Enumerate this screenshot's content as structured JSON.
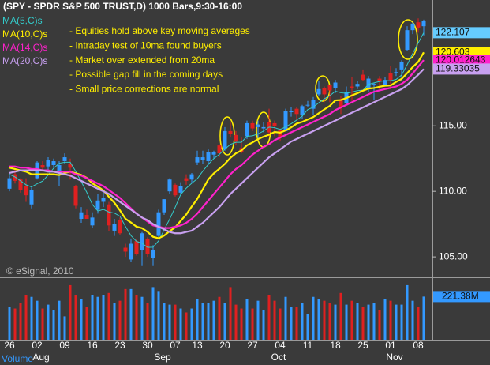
{
  "chart_data": {
    "type": "candlestick",
    "title": "(SPY - SPDR S&P 500 TRUST,D) 1000 Bars,9:30-16:00",
    "annotations": [
      "- Equities hold above key moving averages",
      "- Intraday test of 10ma found buyers",
      "- Market over extended from 20ma",
      "- Possible gap fill in the coming days",
      "- Small price corrections are normal"
    ],
    "watermark": "© eSignal, 2010",
    "categories": [
      "26",
      null,
      null,
      null,
      null,
      "02",
      null,
      null,
      null,
      null,
      "09",
      null,
      null,
      null,
      null,
      "16",
      null,
      null,
      null,
      null,
      "23",
      null,
      null,
      null,
      null,
      "30",
      null,
      null,
      null,
      null,
      "07",
      null,
      null,
      null,
      "13",
      null,
      null,
      null,
      null,
      "20",
      null,
      null,
      null,
      null,
      "27",
      null,
      null,
      null,
      null,
      "04",
      null,
      null,
      null,
      null,
      "11",
      null,
      null,
      null,
      null,
      "18",
      null,
      null,
      null,
      null,
      "25",
      null,
      null,
      null,
      null,
      "01",
      null,
      null,
      null,
      null,
      "08",
      null
    ],
    "month_labels": [
      null,
      null,
      null,
      null,
      null,
      "Aug",
      null,
      null,
      null,
      null,
      null,
      null,
      null,
      null,
      null,
      null,
      null,
      null,
      null,
      null,
      null,
      null,
      null,
      null,
      null,
      null,
      null,
      "Sep",
      null,
      null,
      null,
      null,
      null,
      null,
      null,
      null,
      null,
      null,
      null,
      null,
      null,
      null,
      null,
      null,
      null,
      null,
      null,
      null,
      "Oct",
      null,
      null,
      null,
      null,
      null,
      null,
      null,
      null,
      null,
      null,
      null,
      null,
      null,
      null,
      null,
      null,
      null,
      null,
      null,
      null,
      "Nov",
      null,
      null,
      null,
      null,
      null,
      null
    ],
    "open": [
      110.2,
      111.3,
      110.9,
      110.4,
      109.0,
      111.0,
      112.0,
      111.9,
      112.0,
      111.4,
      112.3,
      112.1,
      110.4,
      107.9,
      108.2,
      107.4,
      108.6,
      109.2,
      109.0,
      107.0,
      107.8,
      105.7,
      104.8,
      106.2,
      105.5,
      106.4,
      104.9,
      106.6,
      108.4,
      110.0,
      110.5,
      109.9,
      111.0,
      110.9,
      112.2,
      112.4,
      112.3,
      112.8,
      113.5,
      113.2,
      114.6,
      114.3,
      113.3,
      114.2,
      115.2,
      114.9,
      114.8,
      115.3,
      115.2,
      114.7,
      114.6,
      116.1,
      116.3,
      115.8,
      116.6,
      116.3,
      117.4,
      117.9,
      118.1,
      117.9,
      117.0,
      116.7,
      118.0,
      118.0,
      118.9,
      117.8,
      118.2,
      118.6,
      118.1,
      119.0,
      119.1,
      119.3,
      120.8,
      122.3,
      122.9,
      122.6
    ],
    "high": [
      111.2,
      111.8,
      111.0,
      111.0,
      110.3,
      112.3,
      112.3,
      112.6,
      112.5,
      112.3,
      112.9,
      112.5,
      110.5,
      108.8,
      108.6,
      108.4,
      109.8,
      109.9,
      109.2,
      107.9,
      108.0,
      106.0,
      106.4,
      106.4,
      106.9,
      106.5,
      105.9,
      108.6,
      109.4,
      111.0,
      110.6,
      110.7,
      111.3,
      111.4,
      113.1,
      113.1,
      113.2,
      113.1,
      113.6,
      114.9,
      115.3,
      114.6,
      114.1,
      115.4,
      115.4,
      115.4,
      115.3,
      116.3,
      115.4,
      114.8,
      116.3,
      116.4,
      116.4,
      116.6,
      116.9,
      117.2,
      118.4,
      118.0,
      118.1,
      118.5,
      117.3,
      118.0,
      118.7,
      118.4,
      119.3,
      118.8,
      118.3,
      118.8,
      118.7,
      119.6,
      119.4,
      120.0,
      122.6,
      122.9,
      123.2,
      123.1
    ],
    "low": [
      110.0,
      110.6,
      109.9,
      109.2,
      108.7,
      110.9,
      111.5,
      111.6,
      111.8,
      110.4,
      112.1,
      110.9,
      108.7,
      107.6,
      107.9,
      107.2,
      108.3,
      108.8,
      107.0,
      106.6,
      106.7,
      105.0,
      104.6,
      105.1,
      104.3,
      105.0,
      104.3,
      106.5,
      108.2,
      109.8,
      109.6,
      109.8,
      110.5,
      110.6,
      112.0,
      112.1,
      112.0,
      112.5,
      112.6,
      113.1,
      114.1,
      113.5,
      112.9,
      114.0,
      114.6,
      113.9,
      114.5,
      114.2,
      114.2,
      113.8,
      114.6,
      115.7,
      115.4,
      115.5,
      116.4,
      115.8,
      117.3,
      116.8,
      116.8,
      117.5,
      115.9,
      116.6,
      116.9,
      117.8,
      118.4,
      117.6,
      117.0,
      117.7,
      118.0,
      117.8,
      118.8,
      118.4,
      120.7,
      122.0,
      122.1,
      121.9
    ],
    "close": [
      111.0,
      110.8,
      110.1,
      109.7,
      110.1,
      112.2,
      111.8,
      112.4,
      112.3,
      112.0,
      112.6,
      111.8,
      108.9,
      108.4,
      107.9,
      108.0,
      109.3,
      109.5,
      107.4,
      107.5,
      106.8,
      105.4,
      106.0,
      105.2,
      106.8,
      105.2,
      105.5,
      108.4,
      109.4,
      110.9,
      109.7,
      110.4,
      110.8,
      111.3,
      112.6,
      112.6,
      113.0,
      113.0,
      112.9,
      114.6,
      114.4,
      113.8,
      113.0,
      115.2,
      114.8,
      115.1,
      114.9,
      114.5,
      115.0,
      114.1,
      116.1,
      116.1,
      115.9,
      116.5,
      116.6,
      117.0,
      117.8,
      117.4,
      117.7,
      118.3,
      116.4,
      117.6,
      117.9,
      118.2,
      118.5,
      118.6,
      118.2,
      118.4,
      118.5,
      118.5,
      119.1,
      119.9,
      122.3,
      122.8,
      122.5,
      123.0
    ],
    "up_color": "#3399ff",
    "down_color": "#e02020",
    "ylim": [
      103.5,
      124.6
    ],
    "yticks": [
      {
        "value": 105,
        "label": "105.00"
      },
      {
        "value": 110,
        "label": "110.00"
      },
      {
        "value": 115,
        "label": "115.00"
      }
    ],
    "moving_averages": [
      {
        "name": "MA(5,C)s",
        "color": "#33cccc",
        "label_color": "#66ccff",
        "values": [
          111.3,
          111.1,
          110.8,
          110.5,
          110.34,
          110.58,
          110.78,
          111.24,
          111.76,
          112.14,
          112.22,
          112.22,
          111.52,
          110.74,
          109.92,
          109.0,
          108.5,
          108.62,
          108.42,
          108.34,
          108.1,
          107.32,
          106.62,
          106.18,
          106.04,
          105.72,
          105.74,
          106.22,
          107.06,
          107.88,
          108.78,
          109.76,
          110.24,
          110.62,
          110.96,
          111.54,
          112.06,
          112.5,
          112.82,
          113.22,
          113.58,
          113.74,
          113.74,
          114.2,
          114.24,
          114.38,
          114.6,
          114.9,
          114.86,
          114.72,
          114.92,
          115.16,
          115.44,
          115.74,
          116.24,
          116.42,
          116.76,
          117.06,
          117.3,
          117.64,
          117.52,
          117.48,
          117.58,
          117.68,
          117.72,
          118.16,
          118.28,
          118.38,
          118.44,
          118.44,
          118.54,
          118.88,
          119.66,
          120.52,
          121.32,
          122.107
        ]
      },
      {
        "name": "MA(10,C)s",
        "color": "#ffee00",
        "label_color": "#ffee00",
        "values": [
          111.8,
          111.7,
          111.6,
          111.5,
          111.3,
          111.3,
          111.3,
          111.3,
          111.3,
          111.24,
          111.4,
          111.5,
          111.38,
          111.25,
          111.03,
          110.61,
          110.36,
          110.07,
          109.58,
          109.13,
          108.55,
          107.91,
          107.62,
          107.3,
          107.19,
          106.91,
          106.53,
          106.42,
          106.62,
          106.96,
          107.25,
          107.75,
          108.23,
          108.84,
          109.42,
          110.16,
          110.91,
          111.37,
          111.72,
          112.09,
          112.56,
          112.9,
          113.12,
          113.51,
          113.73,
          113.98,
          114.17,
          114.32,
          114.53,
          114.48,
          114.65,
          114.88,
          115.17,
          115.3,
          115.48,
          115.67,
          115.96,
          116.25,
          116.52,
          116.94,
          116.97,
          117.12,
          117.32,
          117.49,
          117.68,
          117.84,
          117.88,
          117.98,
          118.06,
          118.08,
          118.35,
          118.58,
          119.02,
          119.48,
          119.88,
          120.603
        ]
      },
      {
        "name": "MA(14,C)s",
        "color": "#ff22cc",
        "label_color": "#ff22cc",
        "values": [
          111.9,
          111.9,
          111.8,
          111.8,
          111.7,
          111.7,
          111.6,
          111.6,
          111.5,
          111.5,
          111.5,
          111.5,
          111.3,
          111.2,
          111.0,
          110.8,
          110.6,
          110.4,
          110.1,
          109.8,
          109.5,
          109.1,
          108.7,
          108.3,
          108.0,
          107.7,
          107.4,
          107.3,
          107.2,
          107.2,
          107.3,
          107.4,
          107.6,
          107.9,
          108.3,
          108.8,
          109.3,
          109.8,
          110.3,
          110.8,
          111.3,
          111.7,
          112.0,
          112.4,
          112.8,
          113.1,
          113.4,
          113.6,
          113.9,
          114.1,
          114.3,
          114.5,
          114.7,
          114.9,
          115.1,
          115.3,
          115.5,
          115.7,
          115.9,
          116.2,
          116.4,
          116.6,
          116.8,
          117.0,
          117.2,
          117.4,
          117.6,
          117.7,
          117.8,
          117.9,
          118.0,
          118.2,
          118.5,
          119.0,
          119.5,
          120.012643
        ]
      },
      {
        "name": "MA(20,C)s",
        "color": "#c8a0f0",
        "label_color": "#c8a0f0",
        "values": [
          111.4,
          111.5,
          111.6,
          111.6,
          111.6,
          111.6,
          111.6,
          111.5,
          111.5,
          111.4,
          111.3,
          111.2,
          111.0,
          110.8,
          110.6,
          110.4,
          110.2,
          110.0,
          109.8,
          109.5,
          109.2,
          108.9,
          108.6,
          108.3,
          108.0,
          107.8,
          107.5,
          107.3,
          107.1,
          106.9,
          106.8,
          106.8,
          106.9,
          107.0,
          107.3,
          107.6,
          108.0,
          108.4,
          108.8,
          109.3,
          109.8,
          110.2,
          110.6,
          111.0,
          111.4,
          111.8,
          112.2,
          112.6,
          112.9,
          113.2,
          113.5,
          113.8,
          114.0,
          114.2,
          114.4,
          114.6,
          114.8,
          115.0,
          115.2,
          115.4,
          115.6,
          115.8,
          116.0,
          116.2,
          116.4,
          116.6,
          116.8,
          117.0,
          117.2,
          117.4,
          117.6,
          117.8,
          118.1,
          118.5,
          118.9,
          119.33035
        ]
      }
    ],
    "volume": {
      "title": "Volume",
      "ylim": [
        0,
        300
      ],
      "last_value_label": "221.38M",
      "values": [
        170,
        160,
        190,
        230,
        220,
        200,
        160,
        180,
        150,
        200,
        120,
        280,
        230,
        210,
        170,
        230,
        220,
        230,
        240,
        190,
        200,
        260,
        260,
        230,
        220,
        190,
        270,
        250,
        190,
        180,
        180,
        160,
        140,
        160,
        210,
        190,
        190,
        200,
        220,
        190,
        270,
        180,
        160,
        210,
        160,
        200,
        150,
        230,
        200,
        160,
        220,
        170,
        170,
        190,
        130,
        220,
        210,
        200,
        190,
        180,
        240,
        180,
        200,
        190,
        170,
        180,
        190,
        150,
        210,
        200,
        180,
        180,
        280,
        200,
        170,
        221.38
      ]
    }
  }
}
